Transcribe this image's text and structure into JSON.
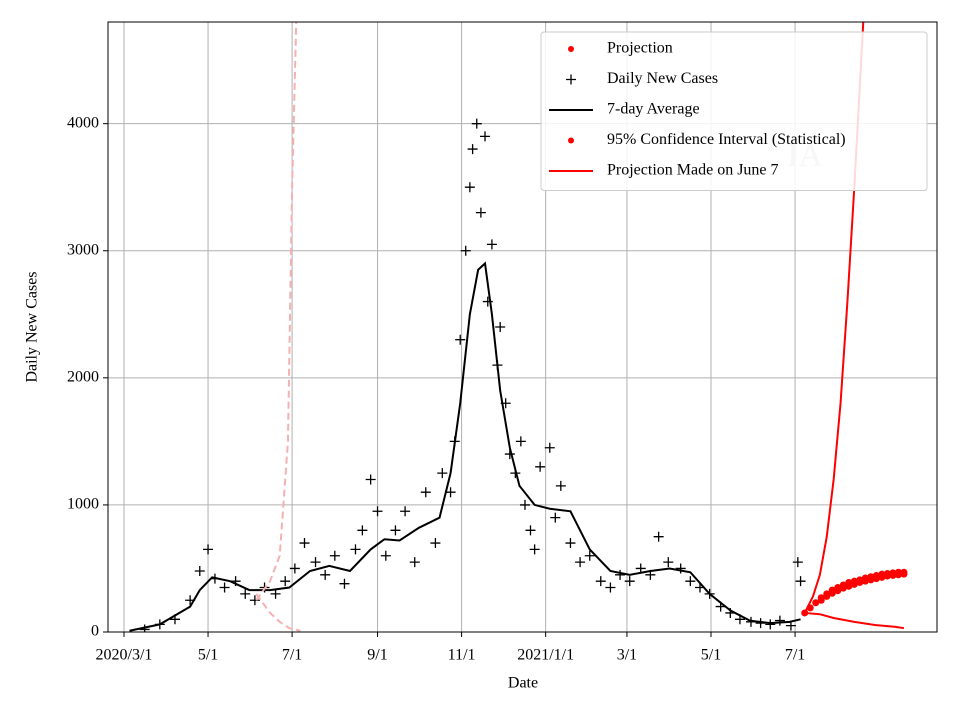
{
  "chart_data": {
    "type": "line",
    "xlabel": "Date",
    "ylabel": "Daily New Cases",
    "annotation": "IA",
    "xlim": [
      -11.6,
      590
    ],
    "ylim": [
      0,
      4800
    ],
    "xticks": [
      {
        "value": 0,
        "label": "2020/3/1"
      },
      {
        "value": 61,
        "label": "5/1"
      },
      {
        "value": 122,
        "label": "7/1"
      },
      {
        "value": 184,
        "label": "9/1"
      },
      {
        "value": 245,
        "label": "11/1"
      },
      {
        "value": 306,
        "label": "2021/1/1"
      },
      {
        "value": 365,
        "label": "3/1"
      },
      {
        "value": 426,
        "label": "5/1"
      },
      {
        "value": 487,
        "label": "7/1"
      }
    ],
    "yticks": [
      0,
      1000,
      2000,
      3000,
      4000
    ],
    "grid": true,
    "legend": "upper right",
    "series": [
      {
        "name": "Projection",
        "color": "#ff0000",
        "style": "dot",
        "x": [
          494,
          498,
          502,
          506,
          510,
          514,
          518,
          522,
          526,
          530,
          534,
          538,
          542,
          546,
          550,
          554,
          558,
          562,
          566
        ],
        "values": [
          150,
          190,
          230,
          270,
          300,
          330,
          350,
          370,
          390,
          400,
          410,
          425,
          435,
          445,
          455,
          460,
          465,
          470,
          470
        ]
      },
      {
        "name": "Daily New Cases",
        "color": "#000000",
        "style": "plus",
        "x": [
          15,
          26,
          37,
          48,
          55,
          61,
          66,
          73,
          81,
          88,
          95,
          102,
          110,
          117,
          124,
          131,
          139,
          146,
          153,
          160,
          168,
          173,
          179,
          184,
          190,
          197,
          204,
          211,
          219,
          226,
          231,
          237,
          240,
          244,
          248,
          251,
          253,
          256,
          259,
          262,
          264,
          267,
          271,
          273,
          277,
          280,
          284,
          288,
          291,
          295,
          298,
          302,
          309,
          313,
          317,
          324,
          331,
          338,
          346,
          353,
          360,
          367,
          375,
          382,
          388,
          395,
          404,
          411,
          418,
          425,
          433,
          440,
          447,
          455,
          462,
          469,
          476,
          484,
          489,
          491
        ],
        "values": [
          20,
          60,
          100,
          250,
          480,
          650,
          420,
          350,
          400,
          300,
          250,
          350,
          300,
          400,
          500,
          700,
          550,
          450,
          600,
          380,
          650,
          800,
          1200,
          950,
          600,
          800,
          950,
          550,
          1100,
          700,
          1250,
          1100,
          1500,
          2300,
          3000,
          3500,
          3800,
          4000,
          3300,
          3900,
          2600,
          3050,
          2100,
          2400,
          1800,
          1400,
          1250,
          1500,
          1000,
          800,
          650,
          1300,
          1450,
          900,
          1150,
          700,
          550,
          600,
          400,
          350,
          450,
          400,
          500,
          450,
          750,
          550,
          500,
          400,
          350,
          300,
          200,
          150,
          100,
          80,
          70,
          60,
          90,
          50,
          550,
          400
        ]
      },
      {
        "name": "7-day Average",
        "color": "#000000",
        "style": "line",
        "x": [
          4,
          26,
          48,
          55,
          64,
          77,
          91,
          106,
          120,
          135,
          149,
          164,
          179,
          189,
          200,
          214,
          229,
          237,
          244,
          251,
          257,
          262,
          267,
          273,
          280,
          287,
          298,
          309,
          324,
          338,
          353,
          367,
          382,
          396,
          411,
          425,
          440,
          454,
          469,
          483,
          491
        ],
        "values": [
          10,
          60,
          200,
          330,
          430,
          400,
          330,
          330,
          350,
          480,
          520,
          480,
          650,
          730,
          720,
          820,
          900,
          1250,
          1800,
          2500,
          2850,
          2900,
          2500,
          1900,
          1450,
          1150,
          1000,
          970,
          950,
          650,
          480,
          450,
          480,
          500,
          470,
          300,
          170,
          90,
          70,
          80,
          100
        ]
      },
      {
        "name": "95% Confidence Interval (Statistical)",
        "color": "#ff0000",
        "style": "dot",
        "x": [
          506,
          510,
          514,
          518,
          522,
          526,
          530,
          534,
          538,
          542,
          546,
          550,
          554,
          558,
          562,
          566
        ],
        "values": [
          250,
          280,
          305,
          325,
          345,
          360,
          375,
          390,
          400,
          410,
          420,
          430,
          440,
          445,
          450,
          455
        ]
      },
      {
        "name": "Projection Made on June 7",
        "color": "#ff0000",
        "style": "line",
        "x": [
          494,
          505,
          515,
          530,
          545,
          560,
          566
        ],
        "values": [
          150,
          140,
          110,
          80,
          55,
          40,
          30
        ]
      },
      {
        "color": "#ff0000",
        "style": "line",
        "x": [
          494,
          500,
          505,
          510,
          515,
          520,
          525,
          530,
          535,
          537
        ],
        "values": [
          150,
          280,
          450,
          750,
          1200,
          1800,
          2600,
          3500,
          4500,
          4900
        ]
      },
      {
        "color": "#f5b0b0",
        "style": "dashed",
        "x": [
          96,
          106,
          113,
          119,
          122,
          125
        ],
        "values": [
          250,
          400,
          600,
          1500,
          3500,
          4800
        ]
      },
      {
        "color": "#f5b0b0",
        "style": "dashed",
        "x": [
          96,
          106,
          113,
          120,
          128
        ],
        "values": [
          300,
          150,
          80,
          30,
          10
        ]
      }
    ]
  }
}
